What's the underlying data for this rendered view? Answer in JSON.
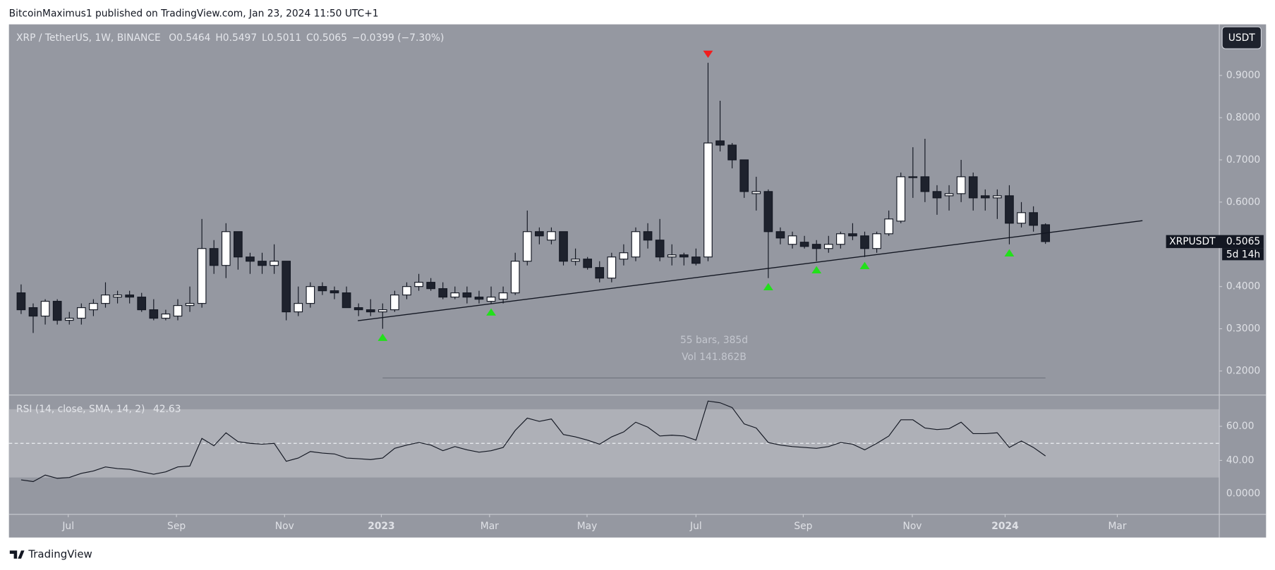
{
  "header": {
    "published": "BitcoinMaximus1 published on TradingView.com, Jan 23, 2024 11:50 UTC+1",
    "footer": "TradingView"
  },
  "chart_data": [
    {
      "type": "candlestick",
      "title": "XRP / TetherUS, 1W, BINANCE",
      "ohlc_prefixes": [
        "O",
        "H",
        "L",
        "C"
      ],
      "change_label": "−0.0399 (−7.30%)",
      "currency": "USDT",
      "symbol": "XRPUSDT",
      "countdown": "5d 14h",
      "up_color": "#ffffff",
      "down_color": "#1e222d",
      "open": [
        0.385,
        0.35,
        0.33,
        0.365,
        0.32,
        0.325,
        0.345,
        0.36,
        0.375,
        0.38,
        0.375,
        0.345,
        0.325,
        0.33,
        0.355,
        0.36,
        0.49,
        0.45,
        0.53,
        0.47,
        0.46,
        0.45,
        0.46,
        0.34,
        0.36,
        0.4,
        0.39,
        0.385,
        0.35,
        0.345,
        0.34,
        0.345,
        0.38,
        0.4,
        0.41,
        0.395,
        0.375,
        0.385,
        0.375,
        0.365,
        0.37,
        0.385,
        0.46,
        0.53,
        0.51,
        0.53,
        0.46,
        0.465,
        0.445,
        0.42,
        0.465,
        0.47,
        0.53,
        0.51,
        0.47,
        0.475,
        0.47,
        0.47,
        0.745,
        0.735,
        0.7,
        0.62,
        0.625,
        0.53,
        0.5,
        0.505,
        0.5,
        0.49,
        0.5,
        0.525,
        0.52,
        0.49,
        0.525,
        0.555,
        0.66,
        0.66,
        0.625,
        0.615,
        0.62,
        0.66,
        0.615,
        0.61,
        0.615,
        0.55,
        0.575,
        0.5464
      ],
      "high": [
        0.405,
        0.36,
        0.37,
        0.37,
        0.34,
        0.36,
        0.37,
        0.41,
        0.39,
        0.39,
        0.385,
        0.37,
        0.345,
        0.37,
        0.4,
        0.56,
        0.51,
        0.55,
        0.53,
        0.48,
        0.48,
        0.5,
        0.46,
        0.4,
        0.41,
        0.41,
        0.4,
        0.4,
        0.36,
        0.37,
        0.36,
        0.39,
        0.41,
        0.43,
        0.42,
        0.41,
        0.4,
        0.4,
        0.39,
        0.4,
        0.4,
        0.48,
        0.58,
        0.54,
        0.54,
        0.53,
        0.49,
        0.47,
        0.46,
        0.48,
        0.5,
        0.54,
        0.55,
        0.56,
        0.5,
        0.48,
        0.49,
        0.93,
        0.84,
        0.74,
        0.7,
        0.66,
        0.63,
        0.54,
        0.53,
        0.52,
        0.51,
        0.52,
        0.53,
        0.55,
        0.53,
        0.53,
        0.58,
        0.67,
        0.73,
        0.75,
        0.64,
        0.64,
        0.7,
        0.67,
        0.63,
        0.63,
        0.64,
        0.6,
        0.59,
        0.5497
      ],
      "low": [
        0.335,
        0.29,
        0.31,
        0.31,
        0.31,
        0.31,
        0.33,
        0.35,
        0.36,
        0.36,
        0.34,
        0.32,
        0.32,
        0.32,
        0.34,
        0.35,
        0.43,
        0.42,
        0.44,
        0.43,
        0.43,
        0.43,
        0.32,
        0.33,
        0.35,
        0.38,
        0.37,
        0.35,
        0.33,
        0.33,
        0.3,
        0.34,
        0.37,
        0.39,
        0.39,
        0.37,
        0.37,
        0.36,
        0.36,
        0.36,
        0.36,
        0.38,
        0.45,
        0.5,
        0.5,
        0.45,
        0.45,
        0.44,
        0.41,
        0.41,
        0.45,
        0.46,
        0.49,
        0.46,
        0.45,
        0.45,
        0.45,
        0.46,
        0.72,
        0.68,
        0.61,
        0.58,
        0.42,
        0.5,
        0.49,
        0.49,
        0.46,
        0.48,
        0.49,
        0.51,
        0.47,
        0.48,
        0.52,
        0.55,
        0.61,
        0.6,
        0.57,
        0.58,
        0.6,
        0.58,
        0.58,
        0.56,
        0.5,
        0.54,
        0.53,
        0.5011
      ],
      "close": [
        0.345,
        0.33,
        0.365,
        0.32,
        0.325,
        0.35,
        0.36,
        0.38,
        0.38,
        0.375,
        0.345,
        0.325,
        0.335,
        0.355,
        0.36,
        0.49,
        0.45,
        0.53,
        0.47,
        0.46,
        0.45,
        0.46,
        0.34,
        0.36,
        0.4,
        0.39,
        0.385,
        0.35,
        0.345,
        0.34,
        0.345,
        0.38,
        0.4,
        0.41,
        0.395,
        0.375,
        0.385,
        0.375,
        0.37,
        0.375,
        0.385,
        0.46,
        0.53,
        0.52,
        0.53,
        0.46,
        0.465,
        0.445,
        0.42,
        0.47,
        0.48,
        0.53,
        0.51,
        0.47,
        0.475,
        0.47,
        0.455,
        0.74,
        0.735,
        0.7,
        0.625,
        0.625,
        0.53,
        0.515,
        0.52,
        0.495,
        0.49,
        0.5,
        0.525,
        0.52,
        0.49,
        0.525,
        0.56,
        0.66,
        0.66,
        0.625,
        0.61,
        0.62,
        0.66,
        0.61,
        0.61,
        0.615,
        0.55,
        0.575,
        0.545,
        0.5065
      ],
      "xlim": [
        -1.01,
        99.39
      ],
      "xticks": [
        {
          "value": 3.91,
          "label": "Jul"
        },
        {
          "value": 12.89,
          "label": "Sep"
        },
        {
          "value": 21.86,
          "label": "Nov"
        },
        {
          "value": 29.89,
          "label": "2023"
        },
        {
          "value": 38.87,
          "label": "Mar"
        },
        {
          "value": 46.96,
          "label": "May"
        },
        {
          "value": 56.0,
          "label": "Jul"
        },
        {
          "value": 64.9,
          "label": "Sep"
        },
        {
          "value": 73.95,
          "label": "Nov"
        },
        {
          "value": 81.65,
          "label": "2024"
        },
        {
          "value": 90.96,
          "label": "Mar"
        }
      ],
      "ylim": [
        0.144,
        1.021
      ],
      "yticks": [
        {
          "value": 0.2,
          "label": "0.2000"
        },
        {
          "value": 0.3,
          "label": "0.3000"
        },
        {
          "value": 0.4,
          "label": "0.4000"
        },
        {
          "value": 0.5,
          "label": "0.5000"
        },
        {
          "value": 0.6,
          "label": "0.6000"
        },
        {
          "value": 0.7,
          "label": "0.7000"
        },
        {
          "value": 0.8,
          "label": "0.8000"
        },
        {
          "value": 0.9,
          "label": "0.9000"
        }
      ],
      "trendline": {
        "x": [
          27.94,
          93.05
        ],
        "y": [
          0.319,
          0.556
        ]
      },
      "up_markers": [
        30,
        39,
        62,
        66,
        70,
        82
      ],
      "down_markers": [
        57
      ],
      "marker_colors": {
        "up": "#22e01a",
        "down": "#f21d1d"
      },
      "measure": {
        "bars_label": "55 bars, 385d",
        "volume_label": "Vol 141.862B",
        "x": [
          30,
          85
        ]
      }
    },
    {
      "type": "line",
      "title": "RSI (14, close, SMA, 14, 2)",
      "color": "#131722",
      "values": [
        28.6,
        27.6,
        31.4,
        29.5,
        30.0,
        32.4,
        33.8,
        36.2,
        35.2,
        34.8,
        33.3,
        31.9,
        33.3,
        36.2,
        36.7,
        52.9,
        48.6,
        56.2,
        51.0,
        50.0,
        49.5,
        50.0,
        39.5,
        41.4,
        45.2,
        44.3,
        43.8,
        41.4,
        41.0,
        40.5,
        41.4,
        47.1,
        49.0,
        50.5,
        49.0,
        45.7,
        48.1,
        46.2,
        44.8,
        45.7,
        47.6,
        57.6,
        64.8,
        62.9,
        64.3,
        55.2,
        53.8,
        51.9,
        49.5,
        53.8,
        56.7,
        62.4,
        59.5,
        54.3,
        54.8,
        54.3,
        51.9,
        74.8,
        73.8,
        71.0,
        61.4,
        59.0,
        50.5,
        49.0,
        48.1,
        47.6,
        47.1,
        48.1,
        50.5,
        49.5,
        46.2,
        50.0,
        54.3,
        63.8,
        63.8,
        59.0,
        58.1,
        58.6,
        62.4,
        55.7,
        55.7,
        56.2,
        47.6,
        51.4,
        47.6,
        42.63
      ],
      "ylim": [
        8.6,
        78.1
      ],
      "yticks": [
        {
          "value": 40,
          "label": "40.00"
        },
        {
          "value": 60,
          "label": "60.00"
        }
      ],
      "extra_axis_label": "0.0000",
      "bands": [
        30,
        70
      ],
      "midline": 50
    }
  ]
}
